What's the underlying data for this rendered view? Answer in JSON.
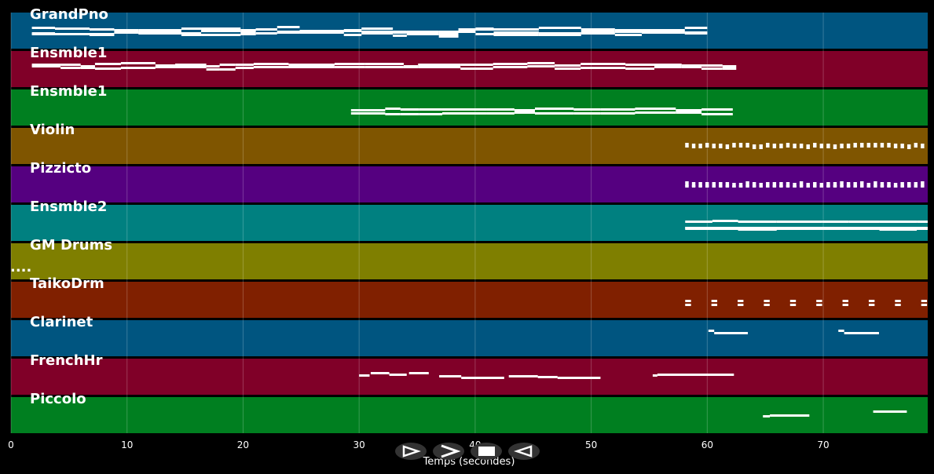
{
  "timeline": {
    "x_axis_label": "Temps (secondes)",
    "x_range": [
      0,
      79
    ],
    "ticks": [
      0,
      10,
      20,
      30,
      40,
      50,
      60,
      70
    ],
    "more_indicator": "...."
  },
  "tracks": [
    {
      "name": "GrandPno",
      "color": "#005580"
    },
    {
      "name": "Ensmble1",
      "color": "#800028"
    },
    {
      "name": "Ensmble1",
      "color": "#007f20"
    },
    {
      "name": "Violin",
      "color": "#7f5500"
    },
    {
      "name": "Pizzicto",
      "color": "#550080"
    },
    {
      "name": "Ensmble2",
      "color": "#008080"
    },
    {
      "name": "GM Drums",
      "color": "#7f7f00"
    },
    {
      "name": "TaikoDrm",
      "color": "#802000"
    },
    {
      "name": "Clarinet",
      "color": "#005580"
    },
    {
      "name": "FrenchHr",
      "color": "#800028"
    },
    {
      "name": "Piccolo",
      "color": "#007f20"
    }
  ],
  "controls": [
    {
      "name": "play-button",
      "icon": "play-outline-icon"
    },
    {
      "name": "forward-button",
      "icon": "chevron-right-icon"
    },
    {
      "name": "stop-button",
      "icon": "stop-icon"
    },
    {
      "name": "rewind-button",
      "icon": "play-reverse-icon"
    }
  ]
}
